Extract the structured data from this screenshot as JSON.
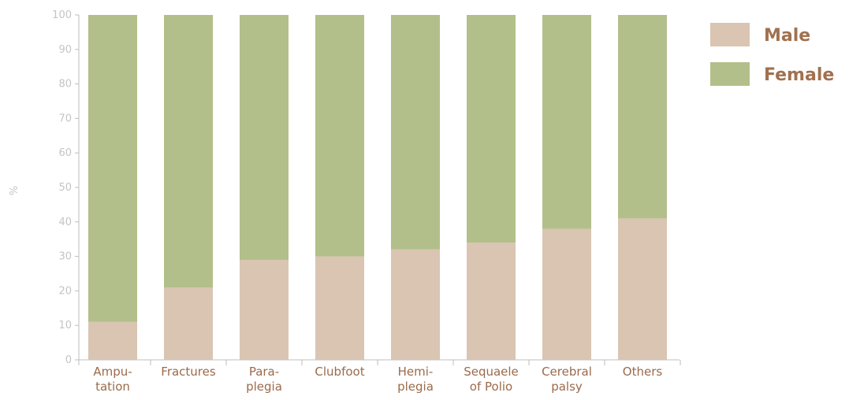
{
  "chart_data": {
    "type": "bar",
    "stacked": true,
    "categories": [
      [
        "Ampu-",
        "tation"
      ],
      [
        "Fractures"
      ],
      [
        "Para-",
        "plegia"
      ],
      [
        "Clubfoot"
      ],
      [
        "Hemi-",
        "plegia"
      ],
      [
        "Sequaele",
        "of Polio"
      ],
      [
        "Cerebral",
        "palsy"
      ],
      [
        "Others"
      ]
    ],
    "series": [
      {
        "name": "Male",
        "color": "#d9c5b2",
        "values": [
          11,
          21,
          29,
          30,
          32,
          34,
          38,
          41
        ]
      },
      {
        "name": "Female",
        "color": "#b2bf8a",
        "values": [
          89,
          79,
          71,
          70,
          68,
          66,
          62,
          59
        ]
      }
    ],
    "ylabel": "%",
    "xlabel": "",
    "ylim": [
      0,
      100
    ],
    "yticks": [
      "0",
      "10",
      "20",
      "30",
      "40",
      "50",
      "60",
      "70",
      "80",
      "90",
      "100"
    ],
    "grid": false,
    "legend_position": "top-right"
  }
}
